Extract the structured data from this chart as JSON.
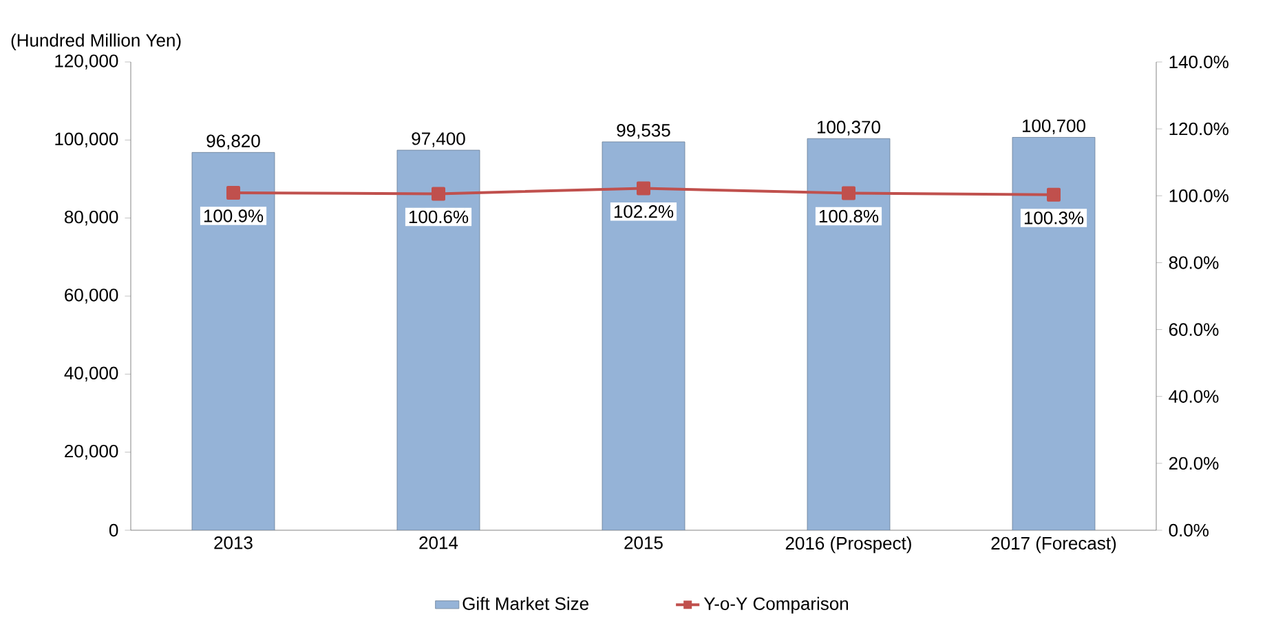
{
  "chart_data": {
    "type": "bar",
    "ylabel": "(Hundred Million Yen)",
    "categories": [
      "2013",
      "2014",
      "2015",
      "2016 (Prospect)",
      "2017 (Forecast)"
    ],
    "series": [
      {
        "name": "Gift Market Size",
        "color": "#95b3d7",
        "values": [
          96820,
          97400,
          99535,
          100370,
          100700
        ],
        "value_labels": [
          "96,820",
          "97,400",
          "99,535",
          "100,370",
          "100,700"
        ]
      },
      {
        "name": "Y-o-Y Comparison",
        "type": "line",
        "axis": "y2",
        "marker": "square",
        "color": "#c0504d",
        "values": [
          100.9,
          100.6,
          102.2,
          100.8,
          100.3
        ],
        "value_labels": [
          "100.9%",
          "100.6%",
          "102.2%",
          "100.8%",
          "100.3%"
        ]
      }
    ],
    "ylim": [
      0,
      120000
    ],
    "yticks": [
      {
        "value": 0,
        "label": "0"
      },
      {
        "value": 20000,
        "label": "20,000"
      },
      {
        "value": 40000,
        "label": "40,000"
      },
      {
        "value": 60000,
        "label": "60,000"
      },
      {
        "value": 80000,
        "label": "80,000"
      },
      {
        "value": 100000,
        "label": "100,000"
      },
      {
        "value": 120000,
        "label": "120,000"
      }
    ],
    "y2lim": [
      0,
      140
    ],
    "y2ticks": [
      {
        "value": 0,
        "label": "0.0%"
      },
      {
        "value": 20,
        "label": "20.0%"
      },
      {
        "value": 40,
        "label": "40.0%"
      },
      {
        "value": 60,
        "label": "60.0%"
      },
      {
        "value": 80,
        "label": "80.0%"
      },
      {
        "value": 100,
        "label": "100.0%"
      },
      {
        "value": 120,
        "label": "120.0%"
      },
      {
        "value": 140,
        "label": "140.0%"
      }
    ],
    "legend": "bottom",
    "grid": false
  }
}
